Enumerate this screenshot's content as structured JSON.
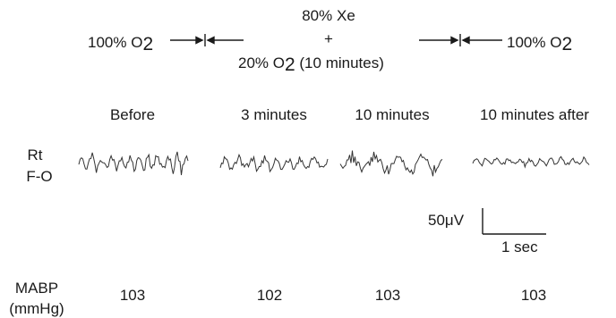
{
  "header": {
    "left_label_prefix": "100% O",
    "left_label_sub": "2",
    "right_label_prefix": "100% O",
    "right_label_sub": "2",
    "mix_line1": "80% Xe",
    "mix_plus": "+",
    "mix_line3_prefix": "20% O",
    "mix_line3_sub": "2",
    "mix_line3_suffix": " (10 minutes)"
  },
  "conditions": [
    "Before",
    "3 minutes",
    "10 minutes",
    "10 minutes after"
  ],
  "channel_label": {
    "line1": "Rt",
    "line2": "F-O"
  },
  "scale_bar": {
    "voltage_label": "50μV",
    "time_label": "1 sec"
  },
  "mabp": {
    "label_line1": "MABP",
    "label_line2": "(mmHg)",
    "values": [
      "103",
      "102",
      "103",
      "103"
    ]
  },
  "colors": {
    "ink": "#1a1a1a",
    "trace": "#333333"
  }
}
